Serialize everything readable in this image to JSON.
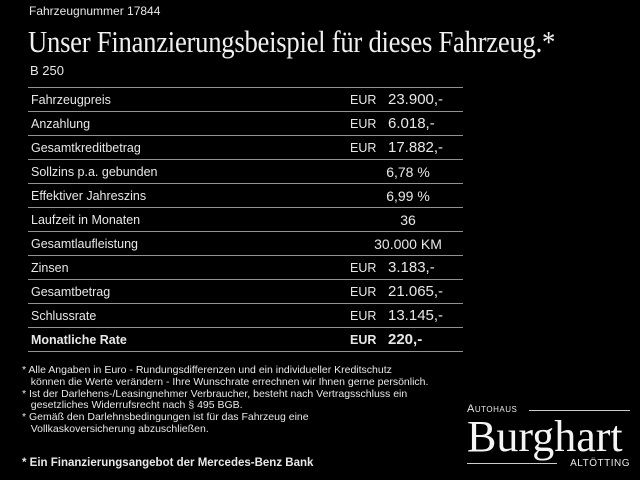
{
  "header": {
    "vehicle_number": "Fahrzeugnummer 17844",
    "title": "Unser Finanzierungsbeispiel für dieses Fahrzeug.*",
    "model": "B 250"
  },
  "rows": [
    {
      "label": "Fahrzeugpreis",
      "currency": "EUR",
      "value": "23.900,-"
    },
    {
      "label": "Anzahlung",
      "currency": "EUR",
      "value": "6.018,-"
    },
    {
      "label": "Gesamtkreditbetrag",
      "currency": "EUR",
      "value": "17.882,-"
    },
    {
      "label": "Sollzins p.a. gebunden",
      "currency": "",
      "value": "6,78 %"
    },
    {
      "label": "Effektiver Jahreszins",
      "currency": "",
      "value": "6,99 %"
    },
    {
      "label": "Laufzeit in Monaten",
      "currency": "",
      "value": "36"
    },
    {
      "label": "Gesamtlaufleistung",
      "currency": "",
      "value": "30.000 KM"
    },
    {
      "label": "Zinsen",
      "currency": "EUR",
      "value": "3.183,-"
    },
    {
      "label": "Gesamtbetrag",
      "currency": "EUR",
      "value": "21.065,-"
    },
    {
      "label": "Schlussrate",
      "currency": "EUR",
      "value": "13.145,-"
    },
    {
      "label": "Monatliche Rate",
      "currency": "EUR",
      "value": "220,-",
      "bold": true
    }
  ],
  "notes": "* Alle Angaben in Euro - Rundungsdifferenzen und ein individueller Kreditschutz\n   können die Werte verändern - Ihre Wunschrate errechnen wir Ihnen gerne persönlich.\n* Ist der Darlehens-/Leasingnehmer Verbraucher, besteht nach Vertragsschluss ein\n   gesetzliches Widerrufsrecht nach § 495 BGB.\n* Gemäß den Darlehnsbedingungen ist für das Fahrzeug eine\n   Vollkaskoversicherung abzuschließen.",
  "final_note": "* Ein Finanzierungsangebot der Mercedes-Benz Bank",
  "logo": {
    "top": "Autohaus",
    "brand": "Burghart",
    "bottom": "ALTÖTTING"
  }
}
